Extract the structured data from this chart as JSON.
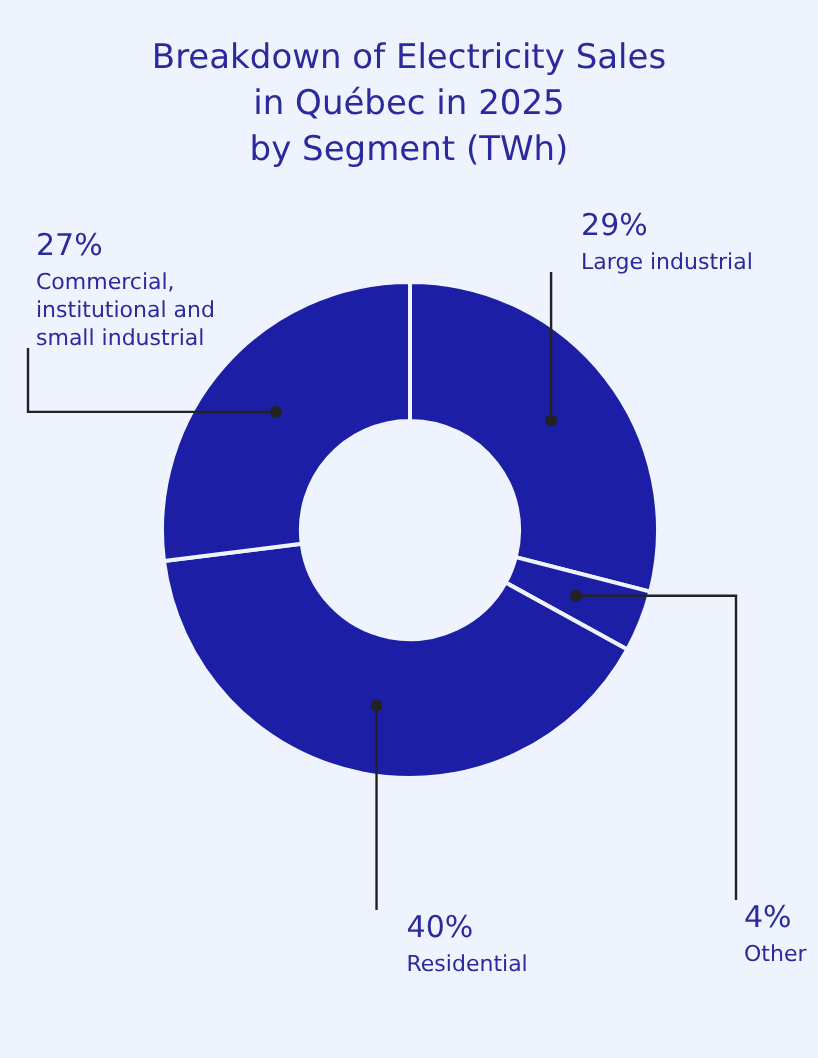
{
  "chart_data": {
    "type": "donut",
    "title": "Breakdown of Electricity Sales\nin Québec in 2025\nby Segment (TWh)",
    "categories": [
      "Large industrial",
      "Other",
      "Residential",
      "Commercial, institutional and small industrial"
    ],
    "values": [
      29,
      4,
      40,
      27
    ],
    "value_labels": [
      "29%",
      "4%",
      "40%",
      "27%"
    ],
    "colors": [
      "#1c1fa6",
      "#1c1fa6",
      "#1c1fa6",
      "#1c1fa6"
    ],
    "legend": false
  }
}
